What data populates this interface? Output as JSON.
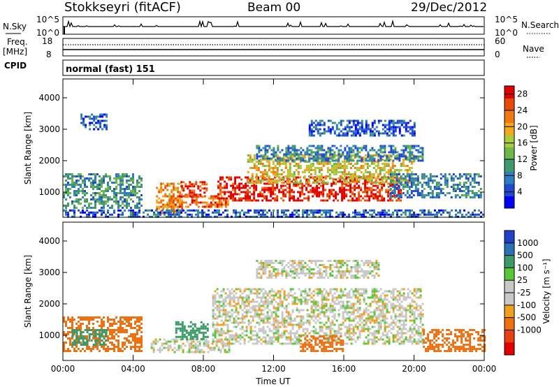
{
  "header": {
    "station": "Stokkseyri (fitACF)",
    "beam": "Beam 00",
    "date": "29/Dec/2012"
  },
  "nsky_panel": {
    "left_label": "N.Sky",
    "right_label": "N.Search",
    "left_ticks": [
      "10^5",
      "10^0"
    ],
    "right_ticks": [
      "10^5",
      "10^0"
    ]
  },
  "freq_panel": {
    "left_label_line1": "Freq.",
    "left_label_line2": "[MHz]",
    "right_label": "Nave",
    "left_ticks": [
      "18",
      "8"
    ],
    "right_ticks": [
      "60",
      "0"
    ]
  },
  "cpid": {
    "label": "CPID",
    "value": "normal (fast) 151"
  },
  "colors": {
    "power": [
      "#0000ff",
      "#1f4bd1",
      "#2e7dbf",
      "#3f9a70",
      "#6cb84a",
      "#a8cc3a",
      "#f2a81a",
      "#f07a10",
      "#e84a0a",
      "#e00000"
    ],
    "velocity": [
      "#2040c8",
      "#2a72b8",
      "#3a9a68",
      "#58c838",
      "#c8c8c8",
      "#c8c8c8",
      "#f0a020",
      "#f07010",
      "#e84010",
      "#e00000"
    ]
  },
  "chart_data": [
    {
      "type": "heatmap",
      "name": "power-panel",
      "ylabel": "Slant Range [km]",
      "x_ticks": [
        "00:00",
        "04:00",
        "08:00",
        "12:00",
        "16:00",
        "20:00",
        "00:00"
      ],
      "y_ticks": [
        1000,
        2000,
        3000,
        4000
      ],
      "ylim": [
        200,
        4600
      ],
      "xlim_hours": [
        0,
        24
      ],
      "colorbar": {
        "label": "Power [dB]",
        "ticks": [
          4,
          8,
          12,
          16,
          20,
          24,
          28
        ],
        "range": [
          0,
          30
        ]
      },
      "regions": [
        {
          "t0": 0.0,
          "t1": 4.5,
          "r0": 500,
          "r1": 1600,
          "value": 10
        },
        {
          "t0": 5.3,
          "t1": 6.8,
          "r0": 350,
          "r1": 1300,
          "value": 22
        },
        {
          "t0": 6.0,
          "t1": 9.5,
          "r0": 550,
          "r1": 900,
          "value": 24
        },
        {
          "t0": 6.7,
          "t1": 8.2,
          "r0": 850,
          "r1": 1350,
          "value": 26
        },
        {
          "t0": 8.8,
          "t1": 19.2,
          "r0": 700,
          "r1": 1500,
          "value": 28
        },
        {
          "t0": 10.5,
          "t1": 20.0,
          "r0": 1300,
          "r1": 2200,
          "value": 18
        },
        {
          "t0": 11.0,
          "t1": 20.5,
          "r0": 2000,
          "r1": 2500,
          "value": 8
        },
        {
          "t0": 1.0,
          "t1": 2.5,
          "r0": 3000,
          "r1": 3500,
          "value": 6
        },
        {
          "t0": 14.0,
          "t1": 20.0,
          "r0": 2800,
          "r1": 3300,
          "value": 6
        },
        {
          "t0": 18.5,
          "t1": 23.8,
          "r0": 800,
          "r1": 1600,
          "value": 8
        },
        {
          "t0": 0.0,
          "t1": 24.0,
          "r0": 200,
          "r1": 450,
          "value": 6
        }
      ]
    },
    {
      "type": "heatmap",
      "name": "velocity-panel",
      "ylabel": "Slant Range [km]",
      "xlabel": "Time UT",
      "x_ticks": [
        "00:00",
        "04:00",
        "08:00",
        "12:00",
        "16:00",
        "20:00",
        "00:00"
      ],
      "y_ticks": [
        1000,
        2000,
        3000,
        4000
      ],
      "ylim": [
        200,
        4600
      ],
      "xlim_hours": [
        0,
        24
      ],
      "colorbar": {
        "label": "Velocity [m s⁻¹]",
        "ticks": [
          "1000",
          "500",
          "100",
          "25",
          "-25",
          "-100",
          "-500",
          "-1000"
        ]
      },
      "regions": [
        {
          "t0": 0.0,
          "t1": 4.5,
          "r0": 500,
          "r1": 1600,
          "value": -300
        },
        {
          "t0": 0.5,
          "t1": 2.5,
          "r0": 700,
          "r1": 1200,
          "value": 300
        },
        {
          "t0": 5.0,
          "t1": 9.5,
          "r0": 450,
          "r1": 900,
          "value": 0
        },
        {
          "t0": 6.4,
          "t1": 8.2,
          "r0": 900,
          "r1": 1450,
          "value": 150
        },
        {
          "t0": 8.5,
          "t1": 20.5,
          "r0": 700,
          "r1": 2500,
          "value": 0
        },
        {
          "t0": 11.0,
          "t1": 18.0,
          "r0": 2800,
          "r1": 3400,
          "value": 0
        },
        {
          "t0": 13.5,
          "t1": 16.0,
          "r0": 500,
          "r1": 1000,
          "value": -300
        },
        {
          "t0": 20.5,
          "t1": 24.0,
          "r0": 500,
          "r1": 1200,
          "value": -400
        }
      ]
    }
  ]
}
